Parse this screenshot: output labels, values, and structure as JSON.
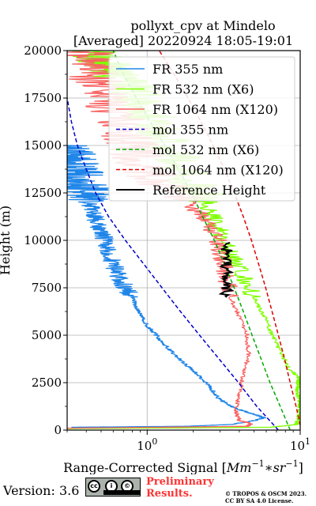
{
  "chart_data": {
    "type": "line",
    "title_line1": "pollyxt_cpv at Mindelo",
    "title_line2": "[Averaged] 20220924 18:05-19:01",
    "xlabel": "Range-Corrected Signal [Mm⁻¹ * sr⁻¹]",
    "xlabel_main": "Range-Corrected Signal [",
    "xlabel_math": "Mm",
    "xlabel_sup1": "−1",
    "xlabel_star": "∗",
    "xlabel_math2": "sr",
    "xlabel_sup2": "−1",
    "xlabel_close": "]",
    "ylabel": "Height (m)",
    "xscale": "log",
    "xlim": [
      0.3,
      10
    ],
    "ylim": [
      0,
      20000
    ],
    "xticks": [
      {
        "value": 1,
        "base": "10",
        "exp": "0"
      },
      {
        "value": 10,
        "base": "10",
        "exp": "1"
      }
    ],
    "yticks": [
      0,
      2500,
      5000,
      7500,
      10000,
      12500,
      15000,
      17500,
      20000
    ],
    "ytick_labels": [
      "0",
      "2500",
      "5000",
      "7500",
      "10000",
      "12500",
      "15000",
      "17500",
      "20000"
    ],
    "grid": true,
    "legend_position": "top-right",
    "series": [
      {
        "name": "FR 355 nm",
        "color": "#1f85e8",
        "style": "solid",
        "noisy": true,
        "points": [
          [
            0.32,
            150
          ],
          [
            1.8,
            200
          ],
          [
            3.6,
            300
          ],
          [
            5.0,
            500
          ],
          [
            5.8,
            650
          ],
          [
            5.2,
            800
          ],
          [
            4.3,
            1000
          ],
          [
            3.4,
            1300
          ],
          [
            2.9,
            1700
          ],
          [
            2.5,
            2400
          ],
          [
            2.1,
            3000
          ],
          [
            1.75,
            3500
          ],
          [
            1.5,
            4000
          ],
          [
            1.3,
            4500
          ],
          [
            1.15,
            5000
          ],
          [
            1.0,
            5500
          ],
          [
            0.92,
            6000
          ],
          [
            0.85,
            6500
          ],
          [
            0.8,
            7000
          ],
          [
            0.72,
            7500
          ],
          [
            0.66,
            8000
          ],
          [
            0.62,
            8500
          ],
          [
            0.58,
            9000
          ],
          [
            0.55,
            9500
          ],
          [
            0.53,
            10000
          ],
          [
            0.5,
            10500
          ],
          [
            0.47,
            11000
          ],
          [
            0.44,
            11500
          ],
          [
            0.42,
            12000
          ],
          [
            0.4,
            12500
          ],
          [
            0.37,
            13000
          ],
          [
            0.35,
            13500
          ],
          [
            0.33,
            14000
          ],
          [
            0.32,
            14500
          ],
          [
            0.3,
            15000
          ]
        ]
      },
      {
        "name": "FR 532 nm (X6)",
        "color": "#7fff00",
        "style": "solid",
        "noisy": true,
        "points": [
          [
            0.3,
            80
          ],
          [
            6.5,
            150
          ],
          [
            9.5,
            300
          ],
          [
            9.8,
            800
          ],
          [
            10,
            1500
          ],
          [
            9.5,
            2000
          ],
          [
            9.7,
            2500
          ],
          [
            9.9,
            2700
          ],
          [
            8.5,
            3200
          ],
          [
            7.6,
            4000
          ],
          [
            6.6,
            5000
          ],
          [
            5.8,
            6000
          ],
          [
            5.0,
            7000
          ],
          [
            4.3,
            8000
          ],
          [
            3.7,
            9000
          ],
          [
            3.2,
            10000
          ],
          [
            2.8,
            11000
          ],
          [
            2.4,
            12000
          ],
          [
            2.1,
            12500
          ],
          [
            1.9,
            13000
          ],
          [
            1.6,
            14000
          ],
          [
            1.35,
            15000
          ],
          [
            1.15,
            16000
          ],
          [
            0.95,
            17000
          ],
          [
            0.8,
            18000
          ],
          [
            0.7,
            18500
          ],
          [
            0.6,
            19000
          ],
          [
            0.5,
            19500
          ],
          [
            0.45,
            20000
          ]
        ]
      },
      {
        "name": "FR 1064 nm (X120)",
        "color": "#f86464",
        "style": "solid",
        "noisy": true,
        "points": [
          [
            0.3,
            100
          ],
          [
            4.5,
            200
          ],
          [
            4.8,
            350
          ],
          [
            4.0,
            500
          ],
          [
            3.8,
            1000
          ],
          [
            4.0,
            2000
          ],
          [
            4.3,
            3000
          ],
          [
            4.6,
            4000
          ],
          [
            4.5,
            5000
          ],
          [
            4.0,
            6000
          ],
          [
            3.5,
            7000
          ],
          [
            3.3,
            8000
          ],
          [
            3.1,
            9000
          ],
          [
            2.9,
            10000
          ],
          [
            2.5,
            11000
          ],
          [
            1.8,
            12000
          ],
          [
            1.2,
            13000
          ],
          [
            0.9,
            14000
          ],
          [
            0.8,
            15000
          ],
          [
            0.7,
            16000
          ],
          [
            0.6,
            17000
          ],
          [
            0.5,
            18000
          ],
          [
            0.42,
            19000
          ],
          [
            0.4,
            20000
          ]
        ]
      },
      {
        "name": "mol 355 nm",
        "color": "#0000cc",
        "style": "dashed",
        "points": [
          [
            7.2,
            0
          ],
          [
            5.2,
            1250
          ],
          [
            3.95,
            2500
          ],
          [
            2.95,
            3750
          ],
          [
            2.2,
            5000
          ],
          [
            1.65,
            6250
          ],
          [
            1.25,
            7500
          ],
          [
            0.95,
            8750
          ],
          [
            0.72,
            10000
          ],
          [
            0.56,
            11250
          ],
          [
            0.46,
            12500
          ],
          [
            0.4,
            13750
          ],
          [
            0.35,
            15000
          ],
          [
            0.32,
            16250
          ],
          [
            0.3,
            17500
          ]
        ]
      },
      {
        "name": "mol 532 nm (X6)",
        "color": "#00aa00",
        "style": "dashed",
        "points": [
          [
            8.6,
            0
          ],
          [
            7.4,
            1250
          ],
          [
            6.35,
            2500
          ],
          [
            5.55,
            3750
          ],
          [
            4.85,
            5000
          ],
          [
            4.25,
            6250
          ],
          [
            3.7,
            7500
          ],
          [
            3.2,
            8750
          ],
          [
            2.75,
            10000
          ],
          [
            2.3,
            11250
          ],
          [
            1.95,
            12500
          ],
          [
            1.6,
            13750
          ],
          [
            1.3,
            15000
          ],
          [
            1.05,
            16250
          ],
          [
            0.85,
            17500
          ],
          [
            0.7,
            18750
          ],
          [
            0.6,
            20000
          ]
        ]
      },
      {
        "name": "mol 1064 nm (X120)",
        "color": "#dd0000",
        "style": "dashed",
        "points": [
          [
            10,
            250
          ],
          [
            9.4,
            1250
          ],
          [
            8.6,
            2500
          ],
          [
            7.9,
            3750
          ],
          [
            7.2,
            5000
          ],
          [
            6.55,
            6250
          ],
          [
            5.95,
            7500
          ],
          [
            5.35,
            8750
          ],
          [
            4.8,
            10000
          ],
          [
            4.25,
            11250
          ],
          [
            3.7,
            12500
          ],
          [
            3.2,
            13750
          ],
          [
            2.7,
            15000
          ],
          [
            2.25,
            16250
          ],
          [
            1.85,
            17500
          ],
          [
            1.5,
            18750
          ],
          [
            1.2,
            20000
          ]
        ]
      },
      {
        "name": "Reference Height",
        "color": "#000000",
        "style": "solid",
        "reference": true,
        "ymin": 7000,
        "ymax": 9900,
        "xcenter": 3.3
      }
    ]
  },
  "footer": {
    "version": "Version: 3.6",
    "cc_icon": "cc-by-sa-badge-icon",
    "prelim_line1": "Preliminary",
    "prelim_line2": "Results.",
    "copyright_line1": "© TROPOS & OSCM 2023.",
    "copyright_line2": "CC BY SA 4.0 License."
  }
}
